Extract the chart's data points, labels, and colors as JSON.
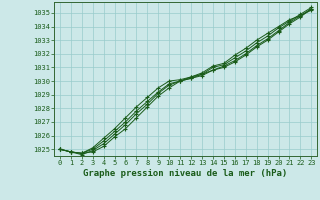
{
  "title": "Graphe pression niveau de la mer (hPa)",
  "background_color": "#cce8e8",
  "plot_bg_color": "#cce8e8",
  "grid_color": "#99cccc",
  "line_color": "#1a5c1a",
  "marker_color": "#1a5c1a",
  "spine_color": "#336633",
  "xlim_min": -0.5,
  "xlim_max": 23.5,
  "ylim_min": 1024.5,
  "ylim_max": 1035.8,
  "yticks": [
    1025,
    1026,
    1027,
    1028,
    1029,
    1030,
    1031,
    1032,
    1033,
    1034,
    1035
  ],
  "xticks": [
    0,
    1,
    2,
    3,
    4,
    5,
    6,
    7,
    8,
    9,
    10,
    11,
    12,
    13,
    14,
    15,
    16,
    17,
    18,
    19,
    20,
    21,
    22,
    23
  ],
  "series": [
    [
      1025.0,
      1024.8,
      1024.7,
      1024.8,
      1025.2,
      1025.9,
      1026.5,
      1027.3,
      1028.1,
      1028.9,
      1029.5,
      1030.0,
      1030.3,
      1030.6,
      1031.1,
      1031.3,
      1031.9,
      1032.4,
      1033.0,
      1033.5,
      1034.0,
      1034.5,
      1034.8,
      1035.2
    ],
    [
      1025.0,
      1024.8,
      1024.7,
      1025.0,
      1025.6,
      1026.3,
      1027.0,
      1027.8,
      1028.5,
      1029.2,
      1029.8,
      1030.0,
      1030.2,
      1030.4,
      1030.8,
      1031.1,
      1031.5,
      1032.0,
      1032.6,
      1033.1,
      1033.7,
      1034.3,
      1034.8,
      1035.3
    ],
    [
      1025.0,
      1024.8,
      1024.7,
      1025.1,
      1025.8,
      1026.5,
      1027.3,
      1028.1,
      1028.8,
      1029.5,
      1030.0,
      1030.1,
      1030.3,
      1030.5,
      1030.8,
      1031.0,
      1031.4,
      1031.9,
      1032.5,
      1033.0,
      1033.6,
      1034.2,
      1034.7,
      1035.3
    ],
    [
      1025.0,
      1024.8,
      1024.6,
      1024.9,
      1025.4,
      1026.1,
      1026.8,
      1027.6,
      1028.3,
      1029.1,
      1029.7,
      1030.0,
      1030.2,
      1030.5,
      1031.0,
      1031.2,
      1031.7,
      1032.2,
      1032.8,
      1033.3,
      1033.9,
      1034.4,
      1034.9,
      1035.4
    ]
  ]
}
